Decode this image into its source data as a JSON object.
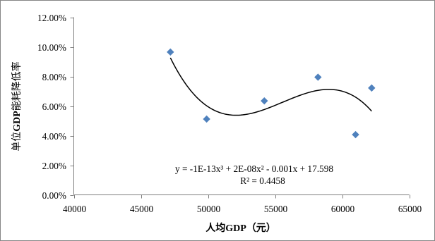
{
  "chart_data": {
    "type": "scatter",
    "xlabel": "人均GDP（元）",
    "ylabel": "单位GDP能耗降低率",
    "xlim": [
      40000,
      65000
    ],
    "ylim": [
      0,
      12
    ],
    "x_ticks": [
      "40000",
      "45000",
      "50000",
      "55000",
      "60000",
      "65000"
    ],
    "y_ticks": [
      "0.00%",
      "2.00%",
      "4.00%",
      "6.00%",
      "8.00%",
      "10.00%",
      "12.00%"
    ],
    "grid": false,
    "legend": "none",
    "series": [
      {
        "x": [
          47200,
          49900,
          54200,
          58200,
          61000,
          62200
        ],
        "y": [
          9.65,
          5.12,
          6.35,
          7.95,
          4.07,
          7.22
        ],
        "marker": "diamond",
        "color": "#4F81BD"
      }
    ],
    "trendline": {
      "type": "polynomial",
      "order": 3,
      "color": "#000000",
      "equation": "y = -1E-13x³ + 2E-08x² - 0.001x + 17.598",
      "r_squared": "R² = 0.4458"
    }
  }
}
